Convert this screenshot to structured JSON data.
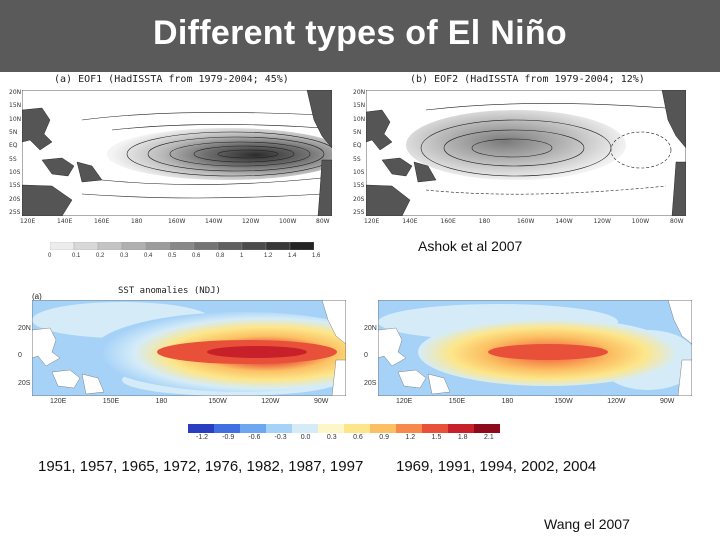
{
  "slide": {
    "title": "Different types of El Niño"
  },
  "ashok": {
    "panel_a_title": "(a)  EOF1  (HadISSTA  from  1979-2004;  45%)",
    "panel_b_title": "(b)  EOF2  (HadISSTA  from  1979-2004;  12%)",
    "lat_labels": [
      "20N",
      "15N",
      "10N",
      "5N",
      "EQ",
      "5S",
      "10S",
      "15S",
      "20S",
      "25S"
    ],
    "lon_labels": [
      "120E",
      "140E",
      "160E",
      "180",
      "160W",
      "140W",
      "120W",
      "100W",
      "80W"
    ],
    "colorbar_labels": [
      "0",
      "0.1",
      "0.2",
      "0.3",
      "0.4",
      "0.5",
      "0.6",
      "0.8",
      "1",
      "1.2",
      "1.4",
      "1.6"
    ],
    "credit": "Ashok et al 2007"
  },
  "wang": {
    "panel_a_label": "(a)",
    "panel_a_title": "SST anomalies (NDJ)",
    "lat_labels": [
      "20N",
      "0",
      "20S"
    ],
    "lon_labels_left": [
      "120E",
      "150E",
      "180",
      "150W",
      "120W",
      "90W"
    ],
    "lon_labels_right": [
      "120E",
      "150E",
      "180",
      "150W",
      "120W",
      "90W"
    ],
    "colorbar_labels": [
      "-1.2",
      "-0.9",
      "-0.6",
      "-0.3",
      "0.0",
      "0.3",
      "0.6",
      "0.9",
      "1.2",
      "1.5",
      "1.8",
      "2.1"
    ],
    "colorbar_colors": [
      "#2a3fbf",
      "#3f6fe0",
      "#6fa6f0",
      "#a6d2f8",
      "#d5ecf8",
      "#fdf6c8",
      "#fde68a",
      "#fcc064",
      "#f58a4a",
      "#e8503a",
      "#c8202a",
      "#8c0a1a"
    ],
    "canonical_years": "1951, 1957, 1965, 1972, 1976, 1982, 1987, 1997",
    "modoki_years": "1969, 1991, 1994, 2002, 2004",
    "credit": "Wang el 2007"
  }
}
